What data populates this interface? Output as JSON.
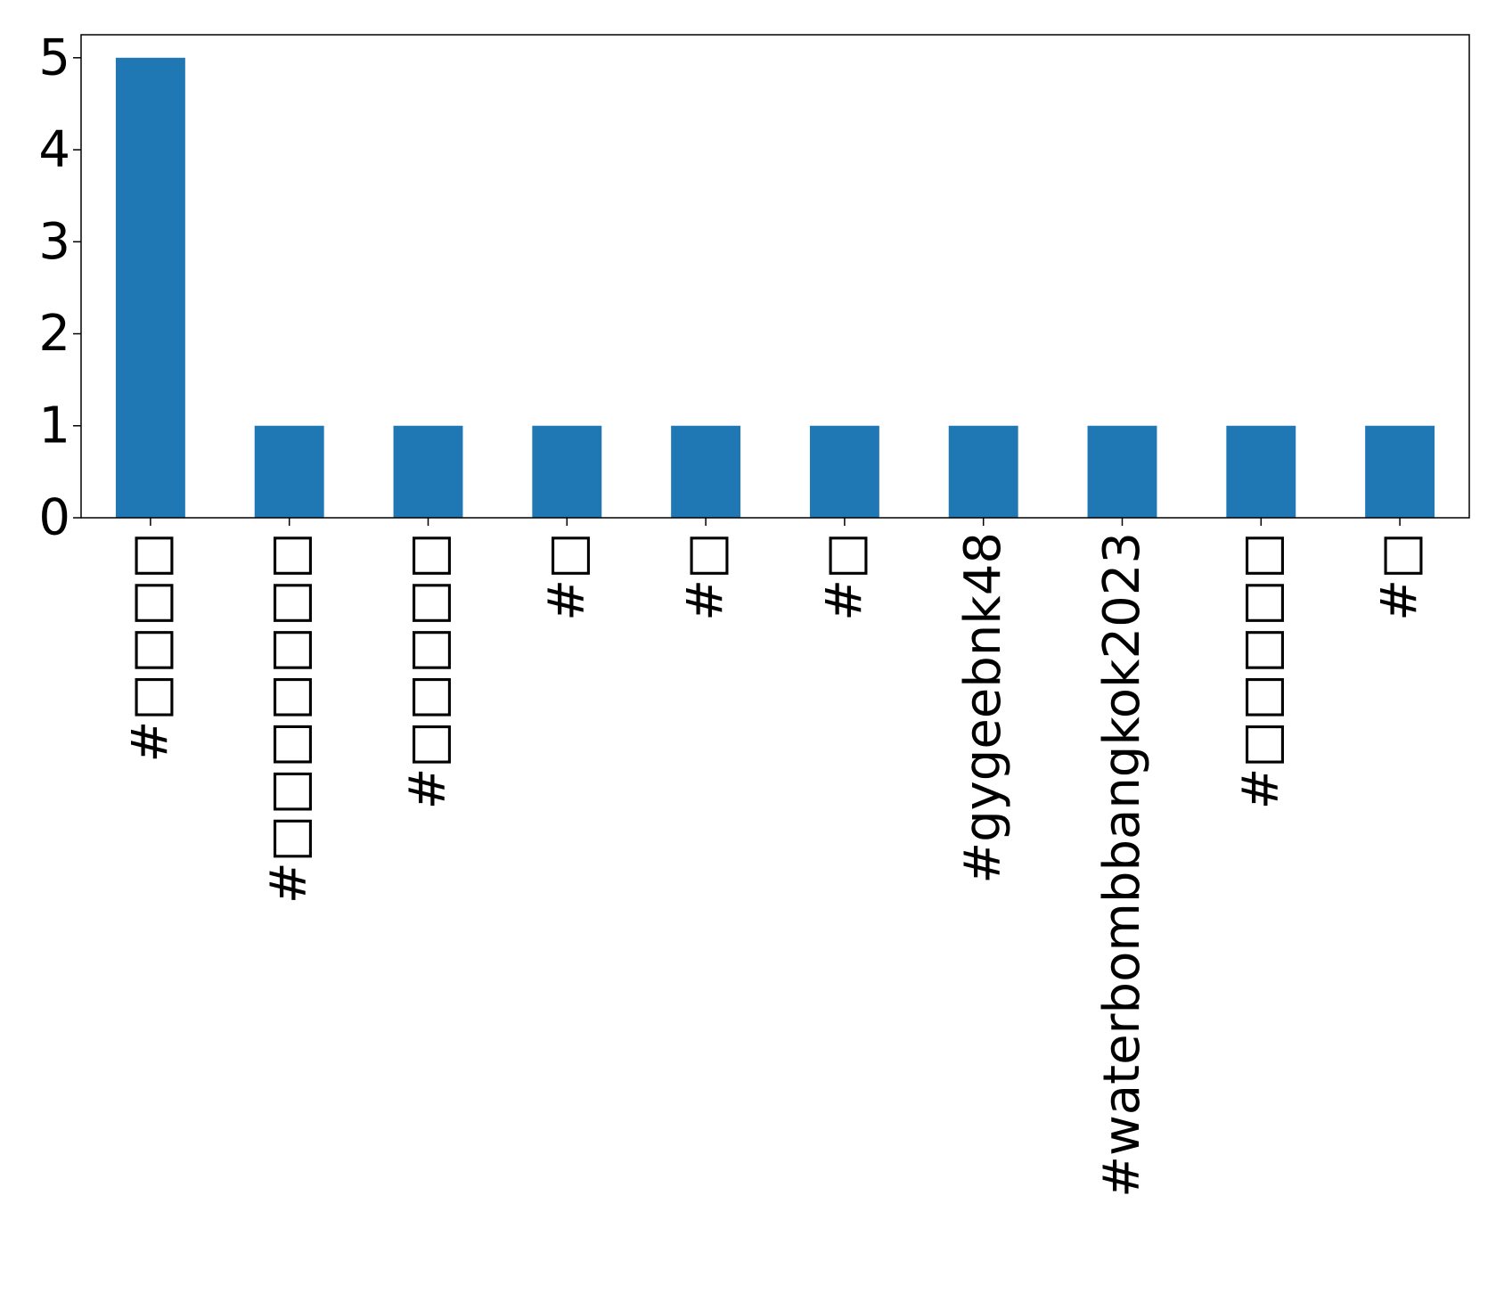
{
  "chart_data": {
    "type": "bar",
    "categories": [
      "#□□□□",
      "#□□□□□□□",
      "#□□□□□",
      "#□",
      "#□",
      "#□",
      "#gygeebnk48",
      "#waterbombbangkok2023",
      "#□□□□□",
      "#□"
    ],
    "values": [
      5,
      1,
      1,
      1,
      1,
      1,
      1,
      1,
      1,
      1
    ],
    "title": "",
    "xlabel": "",
    "ylabel": "",
    "ylim": [
      0,
      5.25
    ],
    "yticks": [
      0,
      1,
      2,
      3,
      4,
      5
    ],
    "grid": false,
    "legend": "none",
    "bar_color": "#1f77b4"
  }
}
